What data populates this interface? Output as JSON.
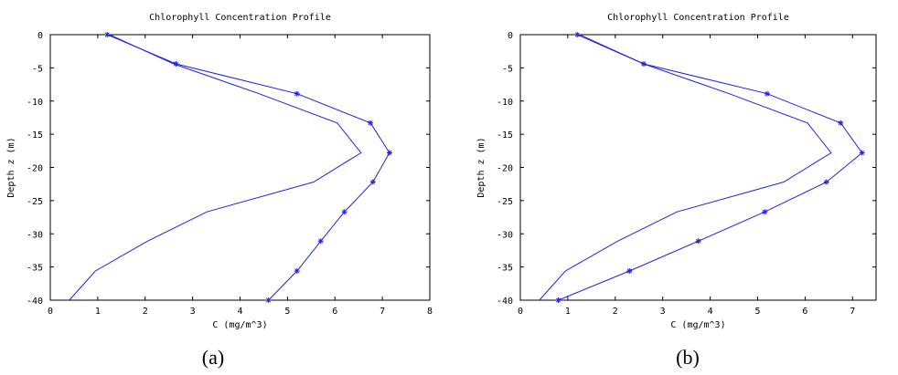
{
  "chart_data": [
    {
      "type": "line",
      "caption": "(a)",
      "title": "Chlorophyll Concentration Profile",
      "xlabel": "C (mg/m^3)",
      "ylabel": "Depth z (m)",
      "xlim": [
        0,
        8
      ],
      "ylim": [
        -40,
        0
      ],
      "xticks": [
        0,
        1,
        2,
        3,
        4,
        5,
        6,
        7,
        8
      ],
      "yticks": [
        0,
        -5,
        -10,
        -15,
        -20,
        -25,
        -30,
        -35,
        -40
      ],
      "series": [
        {
          "marker": "none",
          "points": [
            [
              1.25,
              0
            ],
            [
              2.6,
              -4.4
            ],
            [
              4.4,
              -8.9
            ],
            [
              6.05,
              -13.3
            ],
            [
              6.55,
              -17.8
            ],
            [
              5.55,
              -22.2
            ],
            [
              3.3,
              -26.7
            ],
            [
              2.05,
              -31.1
            ],
            [
              0.95,
              -35.6
            ],
            [
              0.4,
              -40
            ]
          ]
        },
        {
          "marker": "star",
          "points": [
            [
              1.2,
              0
            ],
            [
              2.65,
              -4.4
            ],
            [
              5.2,
              -8.9
            ],
            [
              6.75,
              -13.3
            ],
            [
              7.15,
              -17.8
            ],
            [
              6.8,
              -22.2
            ],
            [
              6.2,
              -26.7
            ],
            [
              5.7,
              -31.1
            ],
            [
              5.2,
              -35.6
            ],
            [
              4.6,
              -40
            ]
          ]
        }
      ]
    },
    {
      "type": "line",
      "caption": "(b)",
      "title": "Chlorophyll Concentration Profile",
      "xlabel": "C (mg/m^3)",
      "ylabel": "Depth z (m)",
      "xlim": [
        0,
        8
      ],
      "ylim": [
        -40,
        0
      ],
      "xticks": [
        0,
        1,
        2,
        3,
        4,
        5,
        6,
        7
      ],
      "yticks": [
        0,
        -5,
        -10,
        -15,
        -20,
        -25,
        -30,
        -35,
        -40
      ],
      "series": [
        {
          "marker": "none",
          "points": [
            [
              1.25,
              0
            ],
            [
              2.6,
              -4.4
            ],
            [
              4.4,
              -8.9
            ],
            [
              6.05,
              -13.3
            ],
            [
              6.55,
              -17.8
            ],
            [
              5.55,
              -22.2
            ],
            [
              3.3,
              -26.7
            ],
            [
              2.05,
              -31.1
            ],
            [
              0.95,
              -35.6
            ],
            [
              0.4,
              -40
            ]
          ]
        },
        {
          "marker": "star",
          "points": [
            [
              1.2,
              0
            ],
            [
              2.6,
              -4.4
            ],
            [
              5.2,
              -8.9
            ],
            [
              6.75,
              -13.3
            ],
            [
              7.2,
              -17.8
            ],
            [
              6.45,
              -22.2
            ],
            [
              5.15,
              -26.7
            ],
            [
              3.75,
              -31.1
            ],
            [
              2.3,
              -35.6
            ],
            [
              0.8,
              -40
            ]
          ]
        }
      ]
    }
  ]
}
